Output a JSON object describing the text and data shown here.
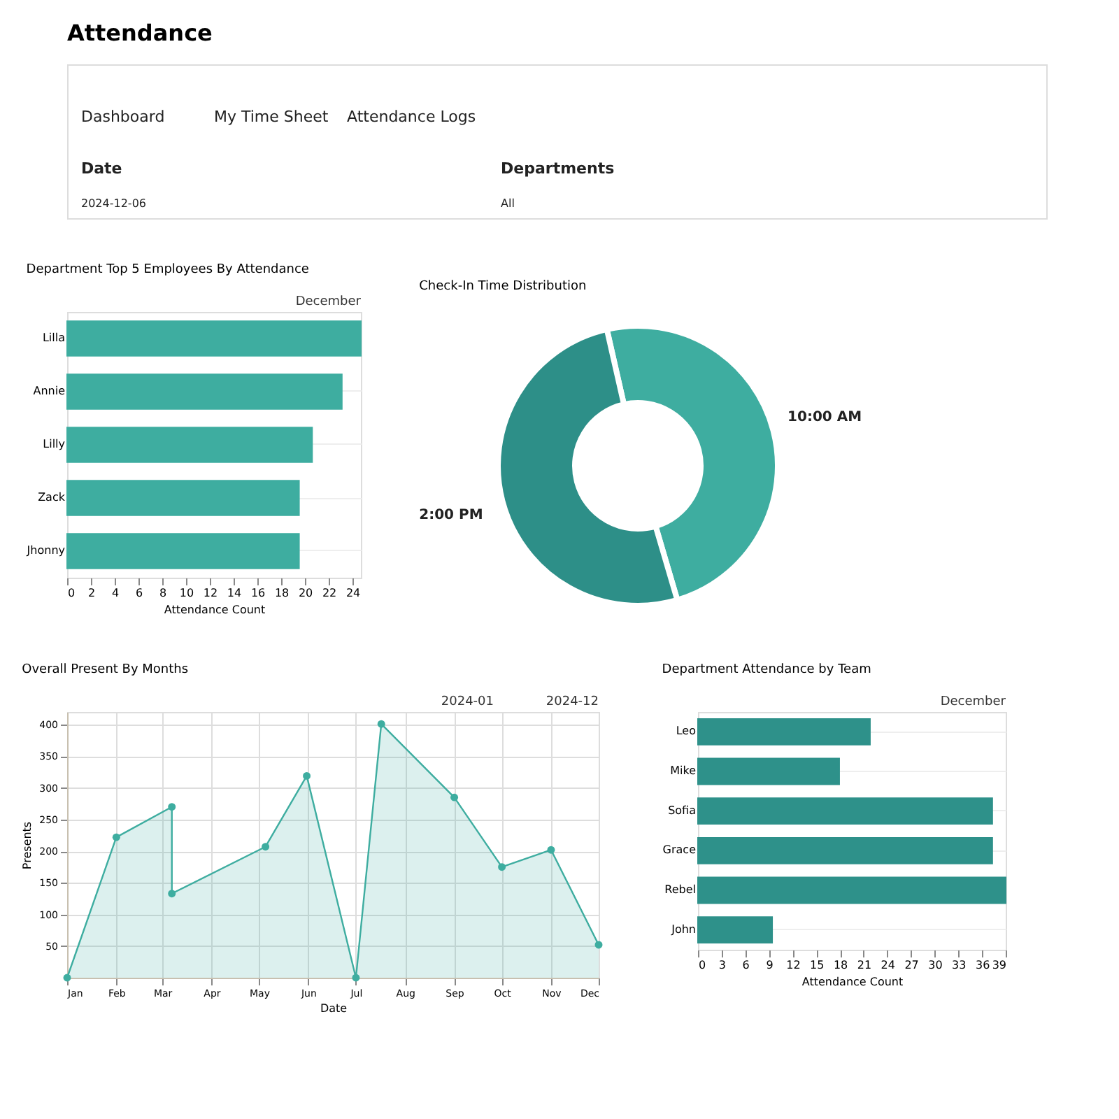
{
  "chart_data": [
    {
      "type": "other",
      "title": "Attendance",
      "annotations": [
        "Dashboard",
        "My Time Sheet",
        "Attendance Logs",
        "Date",
        "2024-12-06",
        "Departments",
        "All"
      ]
    },
    {
      "type": "bar",
      "orientation": "horizontal",
      "title": "Department Top 5 Employees By Attendance",
      "xlabel": "Attendance Count",
      "annotations": [
        "December"
      ],
      "categories": [
        "Lilla",
        "Annie",
        "Lilly",
        "Zack",
        "Jhonny"
      ],
      "values": [
        24.7,
        23.1,
        20.6,
        19.5,
        19.5
      ],
      "color": "#3eada0",
      "xlim": [
        0,
        24.7
      ],
      "xticks": [
        0,
        2,
        4,
        6,
        8,
        10,
        12,
        14,
        16,
        18,
        20,
        22,
        24
      ],
      "grid": "y"
    },
    {
      "type": "donut",
      "title": "Check-In Time Distribution",
      "categories": [
        "10:00 AM",
        "2:00 PM"
      ],
      "values": [
        49,
        51
      ],
      "colors": [
        "#3eada0",
        "#2d8f88"
      ],
      "legend": false
    },
    {
      "type": "area",
      "title": "Overall Present By Months",
      "xlabel": "Date",
      "ylabel": "Presents",
      "annotations": [
        "2024-01",
        "2024-12"
      ],
      "x": [
        "2024-01-01",
        "2024-02-01",
        "2024-03-07",
        "2024-03-07",
        "2024-05-05",
        "2024-05-31",
        "2024-07-01",
        "2024-07-17",
        "2024-09-01",
        "2024-10-01",
        "2024-11-01",
        "2024-12-01"
      ],
      "series": [
        {
          "color": "#3eada0",
          "values": [
            0,
            222,
            270,
            133,
            207,
            319,
            0,
            401,
            285,
            175,
            202,
            52
          ]
        }
      ],
      "marker": "circle",
      "grid": true,
      "xlim": [
        "2024-01-01",
        "2024-12-01"
      ],
      "xticks": [
        {
          "value": "2024-01-01",
          "label": "Jan"
        },
        {
          "value": "2024-02-01",
          "label": "Feb"
        },
        {
          "value": "2024-03-01",
          "label": "Mar"
        },
        {
          "value": "2024-04-01",
          "label": "Apr"
        },
        {
          "value": "2024-05-01",
          "label": "May"
        },
        {
          "value": "2024-06-01",
          "label": "Jun"
        },
        {
          "value": "2024-07-01",
          "label": "Jul"
        },
        {
          "value": "2024-08-01",
          "label": "Aug"
        },
        {
          "value": "2024-09-01",
          "label": "Sep"
        },
        {
          "value": "2024-10-01",
          "label": "Oct"
        },
        {
          "value": "2024-11-01",
          "label": "Nov"
        },
        {
          "value": "2024-12-01",
          "label": "Dec"
        }
      ],
      "ylim": [
        0,
        420
      ],
      "yticks": [
        50,
        100,
        150,
        200,
        250,
        300,
        350,
        400
      ]
    },
    {
      "type": "bar",
      "orientation": "horizontal",
      "title": "Department Attendance by Team",
      "xlabel": "Attendance Count",
      "annotations": [
        "December"
      ],
      "categories": [
        "Leo",
        "Mike",
        "Sofia",
        "Grace",
        "Rebel",
        "John"
      ],
      "values": [
        21.8,
        17.9,
        37.3,
        37.3,
        39,
        9.4
      ],
      "color": "#2e918a",
      "xlim": [
        0,
        39
      ],
      "xticks": [
        0,
        3,
        6,
        9,
        12,
        15,
        18,
        21,
        24,
        27,
        30,
        33,
        36,
        39
      ],
      "grid": "y"
    }
  ]
}
